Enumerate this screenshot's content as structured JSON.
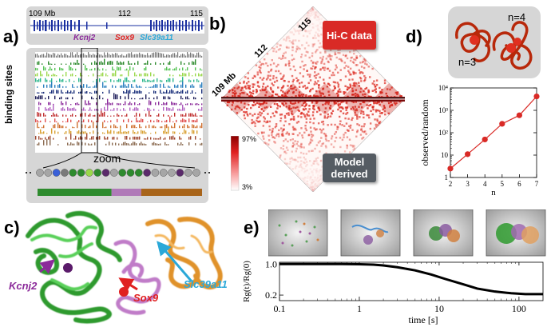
{
  "panels": {
    "a": "a)",
    "b": "b)",
    "c": "c)",
    "d": "d)",
    "e": "e)"
  },
  "panel_a": {
    "coords": [
      "109 Mb",
      "112",
      "115"
    ],
    "genes": [
      {
        "name": "Kcnj2",
        "color": "#8b2a9a"
      },
      {
        "name": "Sox9",
        "color": "#e02020"
      },
      {
        "name": "Slc39a11",
        "color": "#2aa8d8"
      }
    ],
    "ylabel": "binding sites",
    "zoom_label": "zoom",
    "track_colors": [
      "#2d8a2d",
      "#55c455",
      "#9ad84a",
      "#2bb68c",
      "#2a7fbf",
      "#1a2f7a",
      "#1e1e5a",
      "#8b2a9a",
      "#b060c0",
      "#c03030",
      "#e05050",
      "#d07030",
      "#d8a030",
      "#a04830",
      "#8b6a50"
    ],
    "bead_colors": [
      "#a6a6a6",
      "#a6a6a6",
      "#3a60d8",
      "#7a7a7a",
      "#2d8a2d",
      "#2d8a2d",
      "#9ad84a",
      "#2d8a2d",
      "#5a2a6a",
      "#a6a6a6",
      "#2d8a2d",
      "#2d8a2d",
      "#2d8a2d",
      "#5a2a6a",
      "#a6a6a6",
      "#a6a6a6",
      "#a6a6a6",
      "#5a2a6a",
      "#a6a6a6",
      "#a6a6a6"
    ],
    "domain_bar": [
      {
        "color": "#2e8b2e",
        "fraction": 0.45
      },
      {
        "color": "#b07ab8",
        "fraction": 0.18
      },
      {
        "color": "#a8641a",
        "fraction": 0.37
      }
    ]
  },
  "panel_b": {
    "coords": [
      "115",
      "112",
      "109 Mb"
    ],
    "top_label": "Hi-C data",
    "bottom_label": "Model derived",
    "colorbar_max": "97%",
    "colorbar_min": "3%"
  },
  "panel_c": {
    "labels": [
      {
        "name": "Kcnj2",
        "color": "#8b2a9a"
      },
      {
        "name": "Sox9",
        "color": "#e02020"
      },
      {
        "name": "Slc39a11",
        "color": "#2aa8d8"
      }
    ]
  },
  "panel_d": {
    "knot_labels": [
      "n=3",
      "n=4"
    ],
    "chart_data": {
      "type": "line",
      "x": [
        2,
        3,
        4,
        5,
        6,
        7
      ],
      "y": [
        2.5,
        11,
        50,
        250,
        600,
        4200
      ],
      "xlabel": "n",
      "ylabel": "observed/random",
      "xlim": [
        2,
        7
      ],
      "ylim": [
        1,
        10000
      ],
      "yscale": "log",
      "xticks": [
        "2",
        "3",
        "4",
        "5",
        "6",
        "7"
      ],
      "yticks": [
        "1",
        "10",
        "10²",
        "10³",
        "10⁴"
      ],
      "color": "#d92a26"
    }
  },
  "panel_e": {
    "chart_data": {
      "type": "line",
      "x": [
        0.1,
        0.3,
        0.6,
        1,
        1.5,
        2,
        3,
        5,
        8,
        12,
        20,
        30,
        50,
        80,
        120,
        200
      ],
      "y": [
        1.0,
        1.0,
        1.0,
        0.99,
        0.97,
        0.93,
        0.85,
        0.72,
        0.58,
        0.46,
        0.35,
        0.28,
        0.24,
        0.22,
        0.21,
        0.21
      ],
      "xlabel": "time [s]",
      "ylabel": "Rg(t)/Rg(0)",
      "xscale": "log",
      "xlim": [
        0.1,
        200
      ],
      "ylim": [
        0.15,
        1.1
      ],
      "xticks": [
        "0.1",
        "1",
        "10",
        "100"
      ],
      "yticks": [
        "1.0",
        "0.2"
      ]
    }
  }
}
